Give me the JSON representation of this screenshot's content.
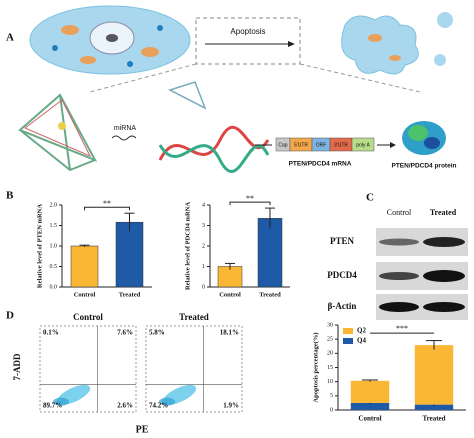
{
  "panel_labels": [
    "A",
    "B",
    "C",
    "D"
  ],
  "diagram": {
    "apoptosis": "Apoptosis",
    "mirna": "miRNA",
    "mrna_parts": [
      "Cap",
      "5'UTR",
      "ORF",
      "3'UTR",
      "poly A"
    ],
    "mrna_label": "PTEN/PDCD4 mRNA",
    "protein_label": "PTEN/PDCD4 protein"
  },
  "blot": {
    "columns": [
      "Control",
      "Treated"
    ],
    "rows": [
      "PTEN",
      "PDCD4",
      "β-Actin"
    ]
  },
  "flow_axes": {
    "ylabel": "7-ADD",
    "xlabel": "PE"
  },
  "chart_data": [
    {
      "type": "bar",
      "ylabel": "Relative level of PTEN mRNA",
      "categories": [
        "Control",
        "Treated"
      ],
      "values": [
        1.0,
        1.58
      ],
      "errors": [
        0.02,
        0.22
      ],
      "colors": [
        "#f9b733",
        "#1f5aa6"
      ],
      "ylim": [
        0,
        2
      ],
      "yticks": [
        {
          "value": 0,
          "label": "0.0"
        },
        {
          "value": 0.5,
          "label": "0.5"
        },
        {
          "value": 1,
          "label": "1.0"
        },
        {
          "value": 1.5,
          "label": "1.5"
        },
        {
          "value": 2,
          "label": "2.0"
        }
      ],
      "annotation": "**"
    },
    {
      "type": "bar",
      "ylabel": "Relative level of PDCD4 mRNA",
      "categories": [
        "Control",
        "Treated"
      ],
      "values": [
        1.0,
        3.35
      ],
      "errors": [
        0.15,
        0.5
      ],
      "colors": [
        "#f9b733",
        "#1f5aa6"
      ],
      "ylim": [
        0,
        4
      ],
      "yticks": [
        0,
        1,
        2,
        3,
        4
      ],
      "annotation": "**"
    },
    {
      "type": "quadrant",
      "title": "Control",
      "values": [
        0.1,
        7.6,
        89.7,
        2.6
      ],
      "value_labels": [
        "0.1%",
        "7.6%",
        "89.7%",
        "2.6%"
      ]
    },
    {
      "type": "quadrant",
      "title": "Treated",
      "values": [
        5.8,
        18.1,
        74.2,
        1.9
      ],
      "value_labels": [
        "5.8%",
        "18.1%",
        "74.2%",
        "1.9%"
      ]
    },
    {
      "type": "stacked",
      "ylabel": "Apoptosis percentage(%)",
      "categories": [
        "Control",
        "Treated"
      ],
      "series": [
        {
          "name": "Q4",
          "color": "#1f5aa6",
          "values": [
            2.5,
            1.9
          ],
          "errors": [
            0.4,
            0.5
          ]
        },
        {
          "name": "Q2",
          "color": "#f9b733",
          "values": [
            7.8,
            21.0
          ],
          "errors": [
            0.3,
            1.6
          ]
        }
      ],
      "ylim": [
        0,
        30
      ],
      "yticks": [
        0,
        5,
        10,
        15,
        20,
        25,
        30
      ],
      "annotation": "***"
    }
  ]
}
